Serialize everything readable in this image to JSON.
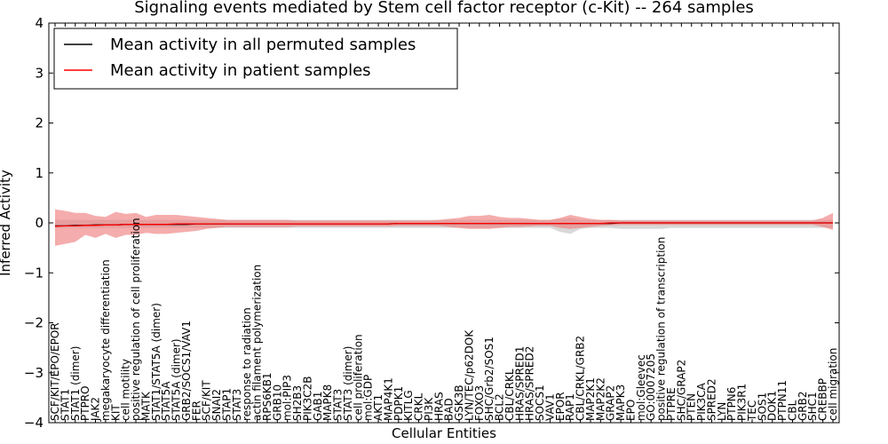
{
  "chart_data": {
    "type": "line",
    "title": "Signaling events mediated by Stem cell factor receptor (c-Kit) -- 264 samples",
    "xlabel": "Cellular Entities",
    "ylabel": "Inferred Activity",
    "ylim": [
      -4,
      4
    ],
    "yticks": [
      "−4",
      "−3",
      "−2",
      "−1",
      "0",
      "1",
      "2",
      "3",
      "4"
    ],
    "legend": {
      "position": "top-left",
      "entries": [
        "Mean activity in all permuted samples",
        "Mean activity in patient samples"
      ]
    },
    "colors": {
      "permuted": "#000000",
      "patient": "#ff0000",
      "patient_band": "#f08080",
      "permuted_band": "#c8c8c8"
    },
    "categories": [
      "SCF/KIT/EPO/EPOR",
      "STAT1",
      "STAT1 (dimer)",
      "PTPRO",
      "JAK2",
      "megakaryocyte differentiation",
      "KIT",
      "cell motility",
      "positive regulation of cell proliferation",
      "MATK",
      "STAT1/STAT5A (dimer)",
      "STAT5A",
      "STAT5A (dimer)",
      "GRB2/SOCS1/VAV1",
      "FER",
      "SCF/KIT",
      "SNAI2",
      "STAP1",
      "STAT3",
      "response to radiation",
      "actin filament polymerization",
      "RPS6KB1",
      "GRB10",
      "mol:PIP3",
      "SH2B3",
      "PIK3C2B",
      "GAB1",
      "MAPK8",
      "STAT3",
      "STAT3 (dimer)",
      "cell proliferation",
      "mol:GDP",
      "AKT1",
      "MAP4K1",
      "PDPK1",
      "KITLG",
      "CRKL",
      "PI3K",
      "HRAS",
      "BAD",
      "GSK3B",
      "LYN/TEC/p62DOK",
      "FOXO3",
      "SHC/Grb2/SOS1",
      "BCL2",
      "CBL/CRKL",
      "HRAS/SPRED1",
      "HRAS/SPRED2",
      "SOCS1",
      "VAV1",
      "EPOR",
      "RAP1",
      "CBL/CRKL/GRB2",
      "MAP2K1",
      "MAP2K2",
      "GRAP2",
      "MAPK3",
      "EPO",
      "mol:Gleevec",
      "GO:0007205",
      "positive regulation of transcription",
      "PTPRE",
      "SHC/GRAP2",
      "PTEN",
      "PIK3CA",
      "SPRED2",
      "LYN",
      "PTPN6",
      "PIK3R1",
      "TEC",
      "SOS1",
      "DOK1",
      "PTPN11",
      "CBL",
      "GRB2",
      "SHC1",
      "CREBBP",
      "cell migration"
    ],
    "series": [
      {
        "name": "Mean activity in all permuted samples",
        "values": [
          -0.06,
          -0.06,
          -0.05,
          -0.05,
          -0.04,
          -0.04,
          -0.04,
          -0.03,
          -0.03,
          -0.03,
          -0.03,
          -0.03,
          -0.03,
          -0.03,
          -0.02,
          -0.02,
          -0.02,
          -0.02,
          -0.02,
          -0.02,
          -0.02,
          -0.02,
          -0.02,
          -0.02,
          -0.02,
          -0.02,
          -0.02,
          -0.02,
          -0.02,
          -0.02,
          -0.02,
          -0.02,
          -0.02,
          -0.02,
          -0.01,
          -0.01,
          -0.01,
          -0.01,
          -0.01,
          -0.01,
          -0.01,
          -0.01,
          -0.01,
          -0.01,
          -0.01,
          -0.01,
          -0.01,
          -0.01,
          -0.01,
          -0.01,
          -0.01,
          -0.01,
          -0.01,
          -0.01,
          -0.01,
          -0.01,
          0.0,
          0.0,
          0.0,
          0.0,
          0.0,
          0.0,
          0.0,
          0.0,
          0.0,
          0.0,
          0.0,
          0.0,
          0.0,
          0.0,
          0.0,
          0.0,
          0.0,
          0.0,
          0.0,
          0.0,
          0.0,
          0.0
        ]
      },
      {
        "name": "Mean activity in patient samples",
        "values": [
          -0.07,
          -0.06,
          -0.06,
          -0.05,
          -0.05,
          -0.04,
          -0.04,
          -0.03,
          -0.03,
          -0.03,
          -0.03,
          -0.03,
          -0.02,
          -0.02,
          -0.02,
          -0.02,
          -0.02,
          -0.02,
          -0.02,
          -0.02,
          -0.02,
          -0.02,
          -0.02,
          -0.02,
          -0.02,
          -0.02,
          -0.02,
          -0.02,
          -0.02,
          -0.02,
          -0.02,
          -0.02,
          -0.02,
          -0.02,
          -0.01,
          -0.01,
          -0.01,
          -0.01,
          -0.01,
          -0.01,
          -0.01,
          -0.01,
          -0.01,
          -0.01,
          -0.01,
          -0.01,
          -0.01,
          -0.01,
          -0.01,
          -0.01,
          -0.01,
          -0.01,
          -0.01,
          -0.01,
          -0.01,
          0.0,
          0.0,
          0.0,
          0.0,
          0.0,
          0.0,
          0.0,
          0.0,
          0.0,
          0.0,
          0.0,
          0.0,
          0.0,
          0.0,
          0.0,
          0.0,
          0.0,
          0.0,
          0.0,
          0.0,
          0.0,
          0.0,
          0.0
        ]
      }
    ],
    "patient_band_upper": [
      0.27,
      0.24,
      0.2,
      0.2,
      0.14,
      0.12,
      0.22,
      0.18,
      0.2,
      0.12,
      0.16,
      0.16,
      0.16,
      0.14,
      0.12,
      0.1,
      0.08,
      0.06,
      0.06,
      0.06,
      0.06,
      0.06,
      0.06,
      0.06,
      0.05,
      0.05,
      0.05,
      0.05,
      0.05,
      0.05,
      0.05,
      0.05,
      0.05,
      0.05,
      0.05,
      0.05,
      0.05,
      0.05,
      0.06,
      0.08,
      0.1,
      0.14,
      0.14,
      0.16,
      0.12,
      0.1,
      0.1,
      0.08,
      0.06,
      0.06,
      0.1,
      0.16,
      0.12,
      0.08,
      0.06,
      0.06,
      0.05,
      0.05,
      0.05,
      0.05,
      0.05,
      0.05,
      0.05,
      0.05,
      0.05,
      0.05,
      0.05,
      0.05,
      0.05,
      0.05,
      0.05,
      0.05,
      0.05,
      0.05,
      0.05,
      0.05,
      0.1,
      0.2
    ],
    "patient_band_lower": [
      -0.46,
      -0.42,
      -0.38,
      -0.24,
      -0.3,
      -0.22,
      -0.3,
      -0.24,
      -0.24,
      -0.2,
      -0.22,
      -0.22,
      -0.2,
      -0.18,
      -0.16,
      -0.12,
      -0.1,
      -0.08,
      -0.08,
      -0.08,
      -0.08,
      -0.08,
      -0.08,
      -0.08,
      -0.07,
      -0.07,
      -0.07,
      -0.07,
      -0.07,
      -0.07,
      -0.07,
      -0.07,
      -0.07,
      -0.07,
      -0.06,
      -0.06,
      -0.06,
      -0.06,
      -0.06,
      -0.08,
      -0.1,
      -0.12,
      -0.12,
      -0.12,
      -0.1,
      -0.08,
      -0.08,
      -0.07,
      -0.06,
      -0.06,
      -0.1,
      -0.12,
      -0.1,
      -0.08,
      -0.06,
      -0.05,
      -0.04,
      -0.04,
      -0.04,
      -0.04,
      -0.04,
      -0.04,
      -0.04,
      -0.04,
      -0.04,
      -0.04,
      -0.04,
      -0.04,
      -0.04,
      -0.04,
      -0.04,
      -0.04,
      -0.04,
      -0.04,
      -0.04,
      -0.04,
      -0.08,
      -0.14
    ],
    "permuted_band_upper": [
      0.06,
      0.06,
      0.06,
      0.06,
      0.06,
      0.06,
      0.06,
      0.06,
      0.06,
      0.06,
      0.06,
      0.06,
      0.06,
      0.06,
      0.06,
      0.06,
      0.06,
      0.06,
      0.06,
      0.06,
      0.06,
      0.06,
      0.06,
      0.06,
      0.06,
      0.06,
      0.06,
      0.06,
      0.06,
      0.06,
      0.06,
      0.06,
      0.06,
      0.06,
      0.06,
      0.06,
      0.06,
      0.06,
      0.06,
      0.06,
      0.06,
      0.06,
      0.06,
      0.06,
      0.06,
      0.06,
      0.06,
      0.06,
      0.06,
      0.06,
      0.08,
      0.1,
      0.06,
      0.06,
      0.06,
      0.06,
      0.06,
      0.06,
      0.06,
      0.06,
      0.06,
      0.06,
      0.06,
      0.06,
      0.06,
      0.06,
      0.06,
      0.06,
      0.06,
      0.06,
      0.06,
      0.06,
      0.06,
      0.06,
      0.06,
      0.06,
      0.06,
      0.06
    ],
    "permuted_band_lower": [
      -0.1,
      -0.1,
      -0.1,
      -0.1,
      -0.1,
      -0.1,
      -0.1,
      -0.1,
      -0.1,
      -0.1,
      -0.1,
      -0.1,
      -0.1,
      -0.1,
      -0.1,
      -0.1,
      -0.1,
      -0.1,
      -0.1,
      -0.1,
      -0.1,
      -0.1,
      -0.1,
      -0.1,
      -0.1,
      -0.1,
      -0.1,
      -0.1,
      -0.1,
      -0.1,
      -0.1,
      -0.1,
      -0.1,
      -0.1,
      -0.1,
      -0.1,
      -0.1,
      -0.1,
      -0.1,
      -0.1,
      -0.1,
      -0.1,
      -0.1,
      -0.1,
      -0.1,
      -0.1,
      -0.1,
      -0.1,
      -0.1,
      -0.1,
      -0.18,
      -0.22,
      -0.12,
      -0.1,
      -0.1,
      -0.1,
      -0.12,
      -0.12,
      -0.12,
      -0.12,
      -0.12,
      -0.1,
      -0.1,
      -0.1,
      -0.1,
      -0.1,
      -0.1,
      -0.1,
      -0.1,
      -0.1,
      -0.1,
      -0.1,
      -0.1,
      -0.1,
      -0.1,
      -0.1,
      -0.1,
      -0.1
    ]
  }
}
